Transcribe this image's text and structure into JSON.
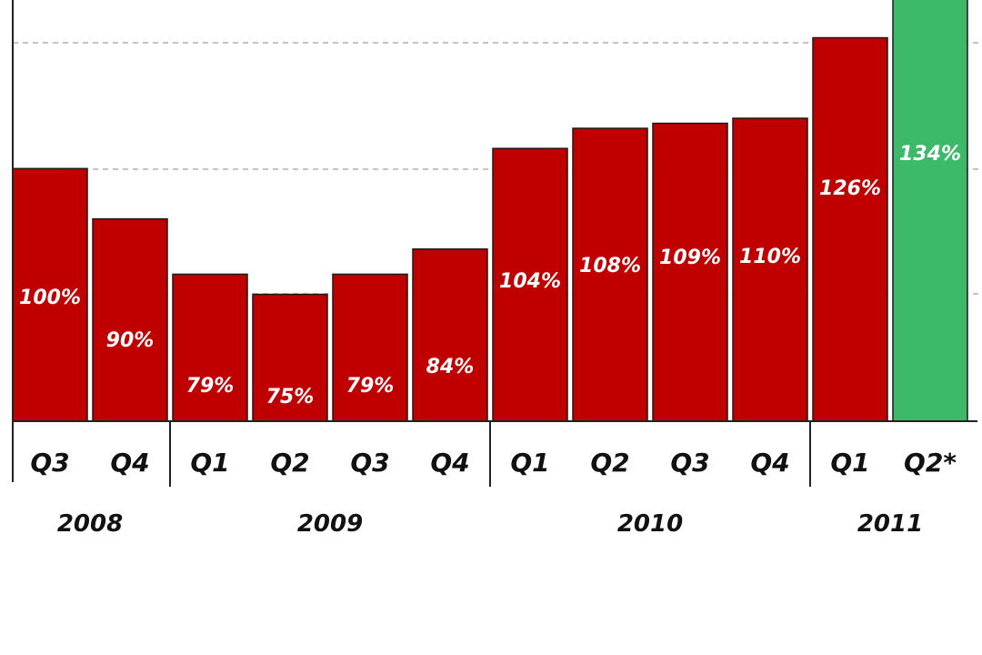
{
  "chart_data": {
    "type": "bar",
    "categories": [
      "Q3",
      "Q4",
      "Q1",
      "Q2",
      "Q3",
      "Q4",
      "Q1",
      "Q2",
      "Q3",
      "Q4",
      "Q1",
      "Q2*"
    ],
    "groups": [
      {
        "label": "2008",
        "count": 2
      },
      {
        "label": "2009",
        "count": 4
      },
      {
        "label": "2010",
        "count": 4
      },
      {
        "label": "2011",
        "count": 2
      }
    ],
    "values": [
      100,
      90,
      79,
      75,
      79,
      84,
      104,
      108,
      109,
      110,
      126,
      134
    ],
    "value_labels": [
      "100%",
      "90%",
      "79%",
      "75%",
      "79%",
      "84%",
      "104%",
      "108%",
      "109%",
      "110%",
      "126%",
      "134%"
    ],
    "highlight_index": 11,
    "grid": true,
    "colors": {
      "bar": "#c00000",
      "highlight": "#3cba6a",
      "grid": "#b0b0b0",
      "axis": "#222222"
    }
  }
}
